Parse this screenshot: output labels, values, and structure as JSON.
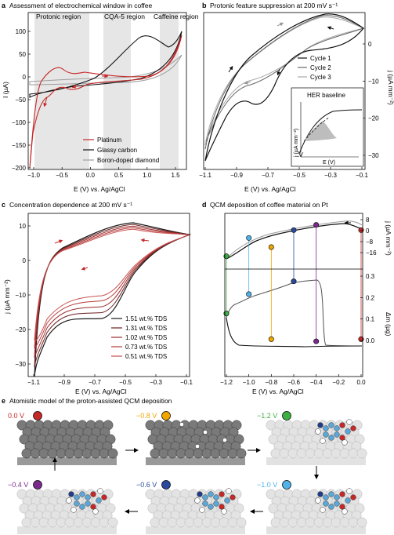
{
  "panels": {
    "a": {
      "label": "a",
      "title": "Assessment of electrochemical window in coffee",
      "regions": [
        "Protonic region",
        "CQA-5 region",
        "Caffeine region"
      ],
      "legend": [
        "Platinum",
        "Glassy carbon",
        "Boron-doped diamond"
      ],
      "xlabel": "E (V) vs. Ag/AgCl",
      "ylabel": "I (µA)"
    },
    "b": {
      "label": "b",
      "title": "Protonic feature suppression at 200 mV s⁻¹",
      "legend": [
        "Cycle 1",
        "Cycle 2",
        "Cycle 3"
      ],
      "inset_title": "HER baseline",
      "inset_ylabel": "j (µA mm⁻²)",
      "inset_xlabel": "E (V)",
      "xlabel": "E (V) vs. Ag/AgCl",
      "ylabel": "j (µA mm⁻²)"
    },
    "c": {
      "label": "c",
      "title": "Concentration dependence at 200 mV s⁻¹",
      "legend": [
        "1.51 wt.% TDS",
        "1.31 wt.% TDS",
        "1.02 wt.% TDS",
        "0.73 wt.% TDS",
        "0.51 wt.% TDS"
      ],
      "xlabel": "E (V) vs. Ag/AgCl",
      "ylabel": "j (µA mm⁻²)"
    },
    "d": {
      "label": "d",
      "title": "QCM deposition of coffee material on Pt",
      "xlabel": "E (V) vs. Ag/AgCl",
      "ylabel_top": "j (µA mm⁻²)",
      "ylabel_bottom": "Δm (µg)"
    },
    "e": {
      "label": "e",
      "title": "Atomistic model of the proton-assisted QCM deposition",
      "steps": [
        {
          "v": "0.0 V",
          "color": "#c62828"
        },
        {
          "v": "−0.8 V",
          "color": "#f0a500"
        },
        {
          "v": "−1.2 V",
          "color": "#3cb043"
        },
        {
          "v": "−1.0 V",
          "color": "#4fb3e8"
        },
        {
          "v": "−0.6 V",
          "color": "#2b4a9e"
        },
        {
          "v": "−0.4 V",
          "color": "#7b2a8c"
        }
      ]
    }
  },
  "chart_data": [
    {
      "panel": "a",
      "type": "line",
      "xlim": [
        -1.1,
        1.7
      ],
      "ylim": [
        -200,
        140
      ],
      "xticks": [
        "−1.0",
        "−0.5",
        "0.0",
        "0.5",
        "1.0",
        "1.5"
      ],
      "yticks": [
        "100",
        "50",
        "0",
        "−50",
        "−100",
        "−150",
        "−200"
      ],
      "series": [
        {
          "name": "Platinum",
          "color": "#c62828"
        },
        {
          "name": "Glassy carbon",
          "color": "#111111"
        },
        {
          "name": "Boron-doped diamond",
          "color": "#9e9e9e"
        }
      ]
    },
    {
      "panel": "b",
      "type": "line",
      "xlim": [
        -1.1,
        -0.05
      ],
      "ylim": [
        -32,
        5
      ],
      "xticks": [
        "−1.1",
        "−0.9",
        "−0.7",
        "−0.5",
        "−0.3",
        "−0.1"
      ],
      "yticks": [
        "0",
        "−10",
        "−20",
        "−30"
      ],
      "series": [
        {
          "name": "Cycle 1",
          "color": "#111111"
        },
        {
          "name": "Cycle 2",
          "color": "#555555"
        },
        {
          "name": "Cycle 3",
          "color": "#aaaaaa"
        }
      ]
    },
    {
      "panel": "c",
      "type": "line",
      "xlim": [
        -1.15,
        -0.08
      ],
      "ylim": [
        -36,
        14
      ],
      "xticks": [
        "−1.1",
        "−0.9",
        "−0.7",
        "−0.5",
        "−0.3",
        "−0.1"
      ],
      "yticks": [
        "10",
        "0",
        "−10",
        "−20",
        "−30"
      ],
      "series": [
        {
          "name": "1.51 wt.% TDS"
        },
        {
          "name": "1.31 wt.% TDS"
        },
        {
          "name": "1.02 wt.% TDS"
        },
        {
          "name": "0.73 wt.% TDS"
        },
        {
          "name": "0.51 wt.% TDS"
        }
      ]
    },
    {
      "panel": "d",
      "type": "line",
      "xlim": [
        -1.2,
        0.0
      ],
      "ylim_top": [
        -20,
        10
      ],
      "ylim_bottom": [
        -0.05,
        0.32
      ],
      "xticks": [
        "−1.2",
        "−1.0",
        "−0.8",
        "−0.6",
        "−0.4",
        "−0.2",
        "0.0"
      ],
      "yticks_top": [
        "8",
        "0",
        "−8",
        "−16"
      ],
      "yticks_bottom": [
        "0.3",
        "0.2",
        "0.1",
        "0.0"
      ],
      "markers": [
        {
          "v": -1.2,
          "color": "#3cb043",
          "j": -18,
          "m": 0.12
        },
        {
          "v": -1.0,
          "color": "#4fb3e8",
          "j": -4,
          "m": 0.21
        },
        {
          "v": -0.8,
          "color": "#f0a500",
          "j": -11,
          "m": 0.0
        },
        {
          "v": -0.6,
          "color": "#2b4a9e",
          "j": 2,
          "m": 0.27
        },
        {
          "v": -0.4,
          "color": "#7b2a8c",
          "j": 6,
          "m": -0.01
        },
        {
          "v": 0.0,
          "color": "#c62828",
          "j": 2,
          "m": 0.0
        }
      ]
    }
  ]
}
